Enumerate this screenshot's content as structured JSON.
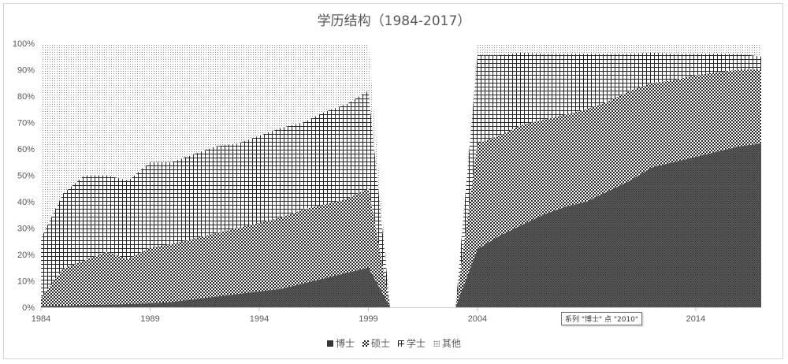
{
  "chart_data": {
    "type": "area",
    "stacked": "percent",
    "title": "学历结构（1984-2017）",
    "xlabel": "",
    "ylabel": "",
    "x_ticks": [
      "1984",
      "1989",
      "1994",
      "1999",
      "2004",
      "2014"
    ],
    "y_ticks": [
      "0%",
      "10%",
      "20%",
      "30%",
      "40%",
      "50%",
      "60%",
      "70%",
      "80%",
      "90%",
      "100%"
    ],
    "ylim": [
      0,
      100
    ],
    "xlim": [
      1984,
      2017
    ],
    "grid": false,
    "legend_position": "bottom",
    "missing_years": [
      2001,
      2002
    ],
    "x": [
      1984,
      1985,
      1986,
      1987,
      1988,
      1989,
      1990,
      1991,
      1992,
      1993,
      1994,
      1995,
      1996,
      1997,
      1998,
      1999,
      2000,
      2001,
      2002,
      2003,
      2004,
      2005,
      2006,
      2007,
      2008,
      2009,
      2010,
      2011,
      2012,
      2013,
      2014,
      2015,
      2016,
      2017
    ],
    "series": [
      {
        "name": "博士",
        "pattern": "dense-dark",
        "color": "#404040",
        "values": [
          0.5,
          0.6,
          0.8,
          1,
          1.2,
          1.5,
          2,
          3,
          4,
          5,
          6,
          7,
          9,
          11,
          13,
          15,
          0,
          null,
          null,
          0,
          22,
          27,
          31,
          35,
          38,
          40,
          44,
          48,
          53,
          55,
          57,
          59,
          61,
          62
        ]
      },
      {
        "name": "硕士",
        "pattern": "checker",
        "color": "#262626",
        "values": [
          3,
          14,
          17,
          20,
          17,
          21,
          22,
          23,
          24,
          25,
          26,
          27,
          28,
          28,
          28,
          30,
          0,
          null,
          null,
          0,
          40,
          38,
          38,
          36,
          35,
          35,
          34,
          34,
          32,
          31,
          31,
          30,
          29,
          28
        ]
      },
      {
        "name": "学士",
        "pattern": "grid",
        "color": "#262626",
        "values": [
          22.5,
          28.4,
          32.2,
          29,
          29.8,
          32.5,
          31,
          32,
          33,
          32,
          33,
          34,
          33,
          35,
          36,
          37,
          0,
          null,
          null,
          0,
          33.5,
          30.5,
          27.5,
          25,
          23,
          21,
          18,
          14,
          11.5,
          10,
          8,
          7,
          6,
          5
        ]
      },
      {
        "name": "其他",
        "pattern": "dots",
        "color": "#9a9a9a",
        "values": [
          74,
          57,
          50,
          50,
          52,
          45,
          45,
          42,
          39,
          38,
          35,
          32,
          30,
          26,
          23,
          18,
          0,
          null,
          null,
          0,
          4.5,
          4.5,
          3.5,
          4,
          4,
          4,
          4,
          4,
          3.5,
          4,
          4,
          4,
          4,
          5
        ]
      }
    ]
  },
  "tooltip": {
    "text": "系列 \"博士\" 点 \"2010\""
  }
}
